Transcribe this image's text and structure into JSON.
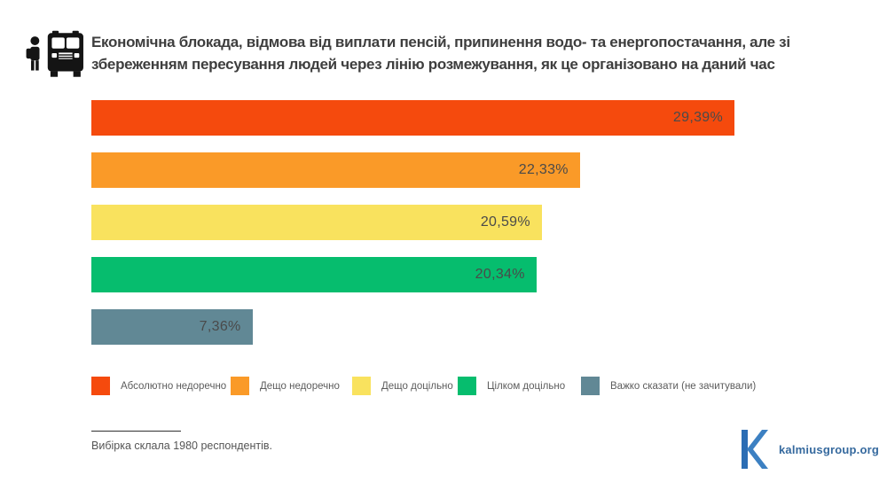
{
  "chart_data": {
    "type": "bar",
    "orientation": "horizontal",
    "title": "Економічна блокада, відмова від виплати пенсій, припинення водо- та енергопостачання, але зі збереженням пересування людей через лінію розмежування, як це організовано на даний час",
    "categories": [
      "Абсолютно недоречно",
      "Дещо недоречно",
      "Дещо доцільно",
      "Цілком доцільно",
      "Важко сказати (не зачитували)"
    ],
    "values": [
      29.39,
      22.33,
      20.59,
      20.34,
      7.36
    ],
    "value_labels": [
      "29,39%",
      "22,33%",
      "20,59%",
      "20,34%",
      "7,36%"
    ],
    "colors": [
      "#F54A0D",
      "#FA9A28",
      "#F9E25E",
      "#06BD6E",
      "#618895"
    ],
    "unit": "%",
    "xlim": [
      0,
      29.39
    ],
    "grid": false,
    "legend_position": "bottom",
    "value_label_color": "#4A4A4A"
  },
  "icons": {
    "header_icon": "bus-passenger-icon",
    "logo_icon": "kalmius-k-icon"
  },
  "footnote": {
    "text": "Вибірка склала 1980 респондентів."
  },
  "branding": {
    "site": "kalmiusgroup.org",
    "logo_color": "#2E71B7",
    "text_color": "#35699E"
  }
}
